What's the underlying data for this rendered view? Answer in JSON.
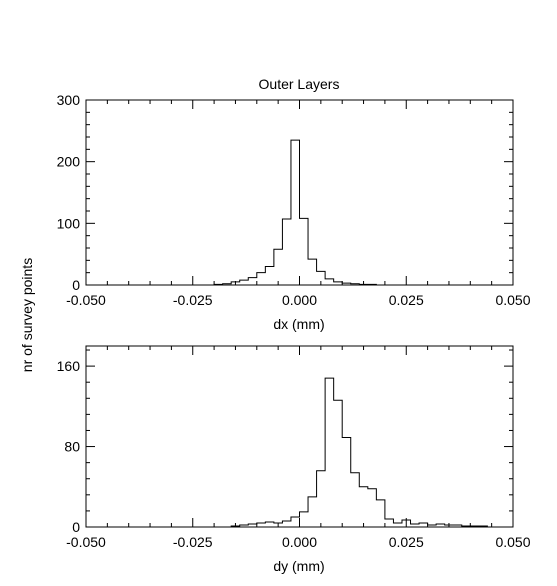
{
  "chart_data": [
    {
      "type": "histogram",
      "title": "Outer Layers",
      "xlabel": "dx (mm)",
      "ylabel": "nr of survey points",
      "xlim": [
        -0.05,
        0.05
      ],
      "ylim": [
        0,
        300
      ],
      "xticks": [
        {
          "value": -0.05,
          "label": "-0.050"
        },
        {
          "value": -0.025,
          "label": "-0.025"
        },
        {
          "value": 0.0,
          "label": "0.000"
        },
        {
          "value": 0.025,
          "label": "0.025"
        },
        {
          "value": 0.05,
          "label": "0.050"
        }
      ],
      "yticks": [
        {
          "value": 0,
          "label": "0"
        },
        {
          "value": 100,
          "label": "100"
        },
        {
          "value": 200,
          "label": "200"
        },
        {
          "value": 300,
          "label": "300"
        }
      ],
      "bin_width": 0.002,
      "bin_start": -0.05,
      "values": [
        0,
        0,
        0,
        0,
        0,
        0,
        0,
        0,
        0,
        0,
        0,
        0,
        0,
        0,
        0,
        1,
        2,
        5,
        8,
        12,
        20,
        30,
        58,
        107,
        235,
        108,
        42,
        22,
        10,
        5,
        3,
        2,
        1,
        1,
        0,
        0,
        0,
        0,
        0,
        0,
        0,
        0,
        0,
        0,
        0,
        0,
        0,
        0,
        0,
        0
      ]
    },
    {
      "type": "histogram",
      "title": "",
      "xlabel": "dy (mm)",
      "ylabel": "nr of survey points",
      "xlim": [
        -0.05,
        0.05
      ],
      "ylim": [
        0,
        180
      ],
      "xticks": [
        {
          "value": -0.05,
          "label": "-0.050"
        },
        {
          "value": -0.025,
          "label": "-0.025"
        },
        {
          "value": 0.0,
          "label": "0.000"
        },
        {
          "value": 0.025,
          "label": "0.025"
        },
        {
          "value": 0.05,
          "label": "0.050"
        }
      ],
      "yticks": [
        {
          "value": 0,
          "label": "0"
        },
        {
          "value": 80,
          "label": "80"
        },
        {
          "value": 160,
          "label": "160"
        }
      ],
      "bin_width": 0.002,
      "bin_start": -0.05,
      "values": [
        0,
        0,
        0,
        0,
        0,
        0,
        0,
        0,
        0,
        0,
        0,
        0,
        0,
        0,
        0,
        0,
        0,
        1,
        2,
        3,
        4,
        5,
        4,
        6,
        10,
        15,
        30,
        56,
        148,
        126,
        89,
        54,
        40,
        38,
        27,
        8,
        4,
        7,
        3,
        4,
        2,
        3,
        2,
        2,
        1,
        1,
        1,
        0,
        0,
        0
      ]
    }
  ]
}
